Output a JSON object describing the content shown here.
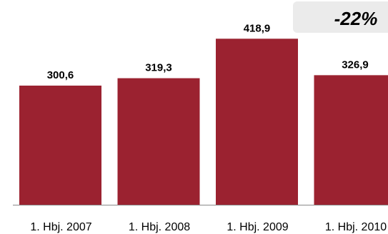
{
  "chart_data": {
    "type": "bar",
    "categories": [
      "1. Hbj. 2007",
      "1. Hbj. 2008",
      "1. Hbj. 2009",
      "1. Hbj. 2010"
    ],
    "values": [
      300.6,
      319.3,
      418.9,
      326.9
    ],
    "value_labels": [
      "300,6",
      "319,3",
      "418,9",
      "326,9"
    ],
    "title": "",
    "xlabel": "",
    "ylabel": "",
    "ylim": [
      0,
      450
    ],
    "grid": false,
    "legend": "none",
    "bar_color": "#9b2230",
    "annotation": "-22%",
    "annotation_bg": "#ebebeb"
  }
}
